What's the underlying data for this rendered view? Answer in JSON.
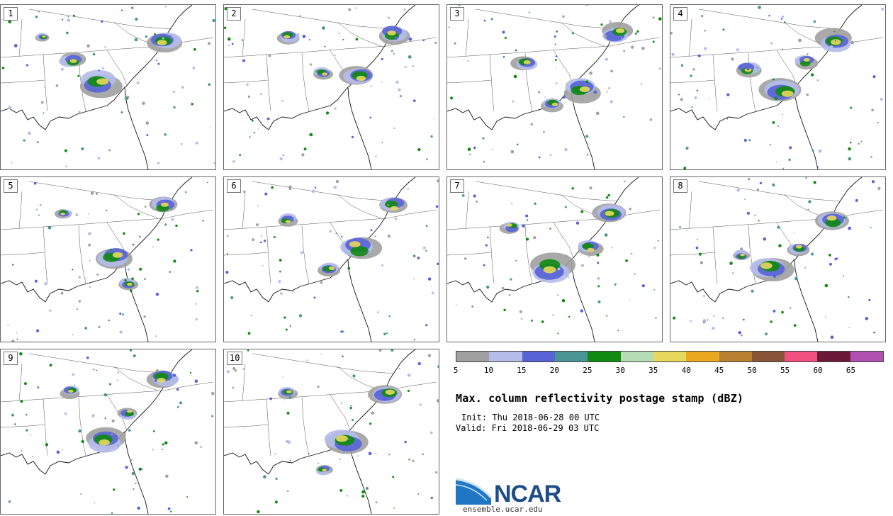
{
  "figure": {
    "title": "Max. column reflectivity postage stamp (dBZ)",
    "init": "Init: Thu 2018-06-28 00 UTC",
    "valid": "Valid: Fri 2018-06-29 03 UTC",
    "org": "NCAR",
    "website": "ensemble.ucar.edu"
  },
  "members": [
    "1",
    "2",
    "3",
    "4",
    "5",
    "6",
    "7",
    "8",
    "9",
    "10"
  ],
  "colorbar": {
    "units": "dBZ",
    "ticks": [
      "5",
      "10",
      "15",
      "20",
      "25",
      "30",
      "35",
      "40",
      "45",
      "50",
      "55",
      "60",
      "65"
    ],
    "colors": [
      "#a0a0a0",
      "#b4bcea",
      "#5763d6",
      "#4a9494",
      "#118a11",
      "#b6dcb6",
      "#e8d85c",
      "#eaa820",
      "#b88030",
      "#885538",
      "#f05080",
      "#6c1838",
      "#b050b0"
    ]
  }
}
